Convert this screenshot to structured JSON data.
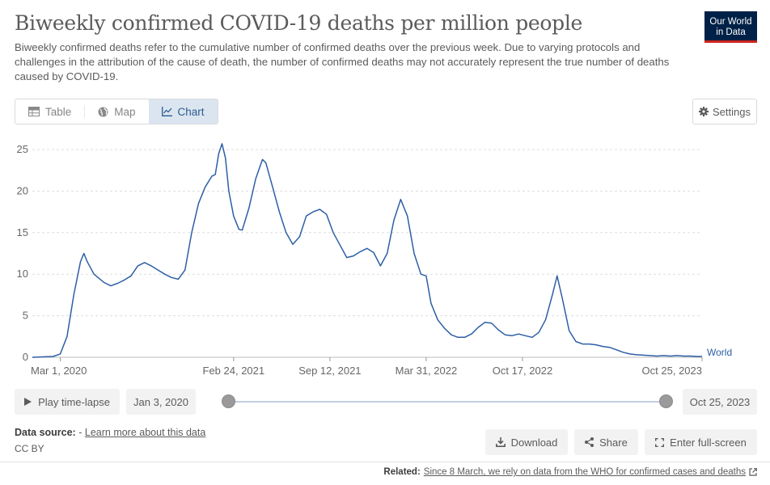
{
  "header": {
    "title": "Biweekly confirmed COVID-19 deaths per million people",
    "subtitle": "Biweekly confirmed deaths refer to the cumulative number of confirmed deaths over the previous week. Due to varying protocols and challenges in the attribution of the cause of death, the number of confirmed deaths may not accurately represent the true number of deaths caused by COVID-19.",
    "logo_line1": "Our World",
    "logo_line2": "in Data"
  },
  "tabs": [
    {
      "label": "Table",
      "icon": "table-icon"
    },
    {
      "label": "Map",
      "icon": "globe-icon"
    },
    {
      "label": "Chart",
      "icon": "line-chart-icon",
      "active": true
    }
  ],
  "settings_label": "Settings",
  "timeline": {
    "play_label": "Play time-lapse",
    "start_date": "Jan 3, 2020",
    "end_date": "Oct 25, 2023"
  },
  "footer": {
    "source_label": "Data source:",
    "source_value": "-",
    "learn_more": "Learn more about this data",
    "license": "CC BY",
    "download_label": "Download",
    "share_label": "Share",
    "fullscreen_label": "Enter full-screen",
    "related_label": "Related:",
    "related_link": "Since 8 March, we rely on data from the WHO for confirmed cases and deaths"
  },
  "colors": {
    "series": "#2d5fa5",
    "grid": "#dddddd",
    "logo_bg": "#002147",
    "logo_accent": "#ce261e"
  },
  "chart_data": {
    "type": "line",
    "title": "Biweekly confirmed COVID-19 deaths per million people",
    "xlabel": "",
    "ylabel": "",
    "ylim": [
      0,
      25
    ],
    "yticks": [
      0,
      5,
      10,
      15,
      20,
      25
    ],
    "grid": true,
    "xtick_labels": [
      "Mar 1, 2020",
      "Feb 24, 2021",
      "Sep 12, 2021",
      "Mar 31, 2022",
      "Oct 17, 2022",
      "Oct 25, 2023"
    ],
    "xticks": [
      "2020-03-01",
      "2021-02-24",
      "2021-09-12",
      "2022-03-31",
      "2022-10-17",
      "2023-10-25"
    ],
    "xlim": [
      "2020-01-03",
      "2023-10-25"
    ],
    "series": [
      {
        "name": "World",
        "points": [
          [
            "2020-01-03",
            0
          ],
          [
            "2020-02-15",
            0.1
          ],
          [
            "2020-03-01",
            0.4
          ],
          [
            "2020-03-15",
            2.5
          ],
          [
            "2020-03-29",
            7.5
          ],
          [
            "2020-04-12",
            11.5
          ],
          [
            "2020-04-19",
            12.5
          ],
          [
            "2020-04-26",
            11.5
          ],
          [
            "2020-05-10",
            10.0
          ],
          [
            "2020-05-31",
            9.0
          ],
          [
            "2020-06-14",
            8.6
          ],
          [
            "2020-06-28",
            8.9
          ],
          [
            "2020-07-12",
            9.3
          ],
          [
            "2020-07-26",
            9.8
          ],
          [
            "2020-08-09",
            11.0
          ],
          [
            "2020-08-23",
            11.4
          ],
          [
            "2020-09-06",
            11.0
          ],
          [
            "2020-09-20",
            10.5
          ],
          [
            "2020-10-04",
            10.0
          ],
          [
            "2020-10-18",
            9.6
          ],
          [
            "2020-11-01",
            9.4
          ],
          [
            "2020-11-15",
            10.5
          ],
          [
            "2020-11-29",
            15.0
          ],
          [
            "2020-12-13",
            18.5
          ],
          [
            "2020-12-27",
            20.5
          ],
          [
            "2021-01-10",
            21.8
          ],
          [
            "2021-01-17",
            22.0
          ],
          [
            "2021-01-24",
            24.5
          ],
          [
            "2021-01-31",
            25.7
          ],
          [
            "2021-02-07",
            24.0
          ],
          [
            "2021-02-14",
            20.0
          ],
          [
            "2021-02-24",
            17.0
          ],
          [
            "2021-03-07",
            15.4
          ],
          [
            "2021-03-14",
            15.3
          ],
          [
            "2021-03-28",
            18.0
          ],
          [
            "2021-04-11",
            21.5
          ],
          [
            "2021-04-25",
            23.8
          ],
          [
            "2021-05-02",
            23.4
          ],
          [
            "2021-05-16",
            20.5
          ],
          [
            "2021-05-30",
            17.5
          ],
          [
            "2021-06-13",
            15.0
          ],
          [
            "2021-06-27",
            13.6
          ],
          [
            "2021-07-11",
            14.5
          ],
          [
            "2021-07-25",
            17.0
          ],
          [
            "2021-08-08",
            17.5
          ],
          [
            "2021-08-22",
            17.8
          ],
          [
            "2021-09-05",
            17.2
          ],
          [
            "2021-09-19",
            15.0
          ],
          [
            "2021-10-03",
            13.5
          ],
          [
            "2021-10-17",
            12.0
          ],
          [
            "2021-10-31",
            12.2
          ],
          [
            "2021-11-14",
            12.7
          ],
          [
            "2021-11-28",
            13.1
          ],
          [
            "2021-12-12",
            12.6
          ],
          [
            "2021-12-26",
            11.0
          ],
          [
            "2022-01-09",
            12.5
          ],
          [
            "2022-01-23",
            16.5
          ],
          [
            "2022-02-06",
            19.0
          ],
          [
            "2022-02-20",
            17.0
          ],
          [
            "2022-03-06",
            12.5
          ],
          [
            "2022-03-20",
            10.0
          ],
          [
            "2022-03-31",
            9.8
          ],
          [
            "2022-04-10",
            6.5
          ],
          [
            "2022-04-24",
            4.5
          ],
          [
            "2022-05-08",
            3.5
          ],
          [
            "2022-05-22",
            2.7
          ],
          [
            "2022-06-05",
            2.4
          ],
          [
            "2022-06-19",
            2.4
          ],
          [
            "2022-07-03",
            2.8
          ],
          [
            "2022-07-17",
            3.6
          ],
          [
            "2022-07-31",
            4.2
          ],
          [
            "2022-08-14",
            4.1
          ],
          [
            "2022-08-28",
            3.3
          ],
          [
            "2022-09-11",
            2.7
          ],
          [
            "2022-09-25",
            2.6
          ],
          [
            "2022-10-09",
            2.8
          ],
          [
            "2022-10-23",
            2.6
          ],
          [
            "2022-11-06",
            2.4
          ],
          [
            "2022-11-20",
            3.0
          ],
          [
            "2022-12-04",
            4.5
          ],
          [
            "2022-12-18",
            7.5
          ],
          [
            "2022-12-28",
            9.8
          ],
          [
            "2023-01-08",
            7.0
          ],
          [
            "2023-01-22",
            3.2
          ],
          [
            "2023-02-05",
            1.9
          ],
          [
            "2023-02-19",
            1.6
          ],
          [
            "2023-03-05",
            1.6
          ],
          [
            "2023-03-19",
            1.5
          ],
          [
            "2023-04-02",
            1.3
          ],
          [
            "2023-04-16",
            1.2
          ],
          [
            "2023-04-30",
            0.9
          ],
          [
            "2023-05-14",
            0.6
          ],
          [
            "2023-05-28",
            0.4
          ],
          [
            "2023-06-11",
            0.3
          ],
          [
            "2023-06-25",
            0.25
          ],
          [
            "2023-07-09",
            0.2
          ],
          [
            "2023-07-23",
            0.15
          ],
          [
            "2023-08-06",
            0.2
          ],
          [
            "2023-08-20",
            0.15
          ],
          [
            "2023-09-03",
            0.2
          ],
          [
            "2023-09-17",
            0.15
          ],
          [
            "2023-10-01",
            0.15
          ],
          [
            "2023-10-15",
            0.1
          ],
          [
            "2023-10-25",
            0.1
          ]
        ]
      }
    ]
  }
}
